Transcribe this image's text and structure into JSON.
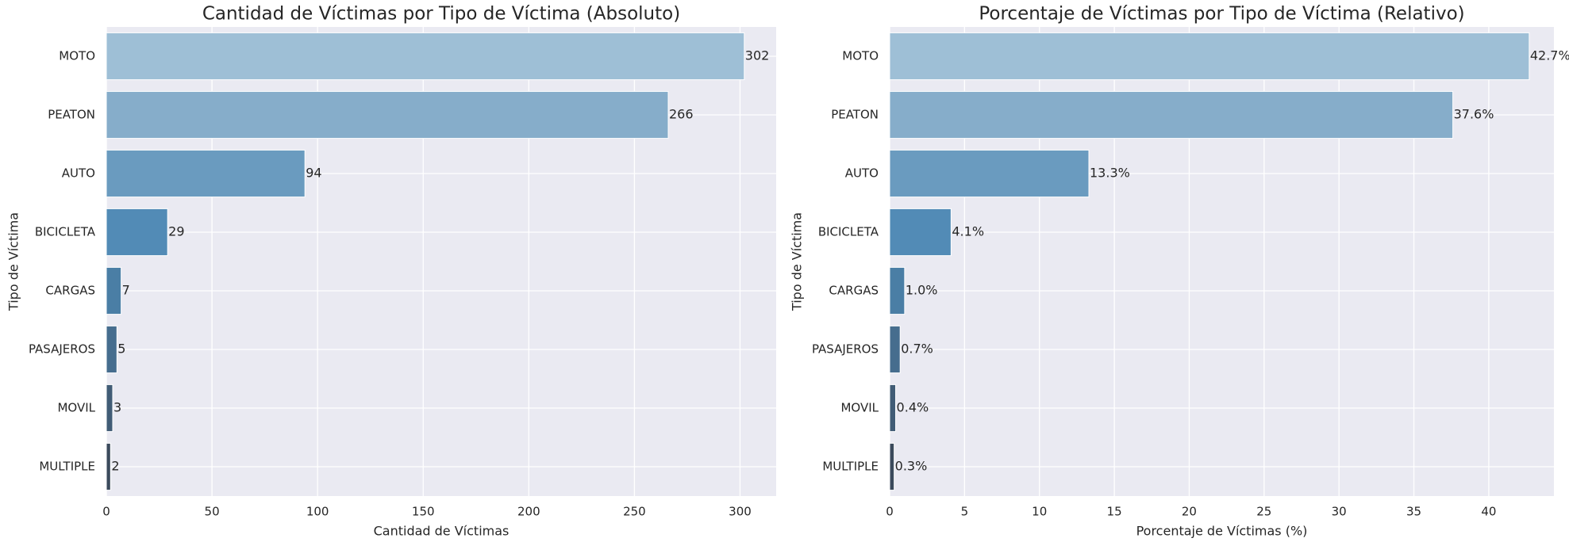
{
  "chart_data": [
    {
      "type": "bar",
      "orientation": "horizontal",
      "title": "Cantidad de Víctimas por Tipo de Víctima (Absoluto)",
      "xlabel": "Cantidad de Víctimas",
      "ylabel": "Tipo de Víctima",
      "categories": [
        "MOTO",
        "PEATON",
        "AUTO",
        "BICICLETA",
        "CARGAS",
        "PASAJEROS",
        "MOVIL",
        "MULTIPLE"
      ],
      "values": [
        302,
        266,
        94,
        29,
        7,
        5,
        3,
        2
      ],
      "colors": [
        "#9ebfd6",
        "#86adca",
        "#6a9bbf",
        "#528bb6",
        "#4a7ea5",
        "#466d8e",
        "#415c76",
        "#3b4a5c"
      ],
      "xlim": [
        0,
        317.1
      ],
      "xticks": [
        0,
        50,
        100,
        150,
        200,
        250,
        300
      ],
      "grid": true
    },
    {
      "type": "bar",
      "orientation": "horizontal",
      "title": "Porcentaje de Víctimas por Tipo de Víctima (Relativo)",
      "xlabel": "Porcentaje de Víctimas (%)",
      "ylabel": "Tipo de Víctima",
      "categories": [
        "MOTO",
        "PEATON",
        "AUTO",
        "BICICLETA",
        "CARGAS",
        "PASAJEROS",
        "MOVIL",
        "MULTIPLE"
      ],
      "values": [
        42.7,
        37.6,
        13.3,
        4.1,
        1.0,
        0.7,
        0.4,
        0.3
      ],
      "value_labels": [
        "42.7%",
        "37.6%",
        "13.3%",
        "4.1%",
        "1.0%",
        "0.7%",
        "0.4%",
        "0.3%"
      ],
      "colors": [
        "#9ebfd6",
        "#86adca",
        "#6a9bbf",
        "#528bb6",
        "#4a7ea5",
        "#466d8e",
        "#415c76",
        "#3b4a5c"
      ],
      "xlim": [
        0,
        44.35
      ],
      "xticks": [
        0,
        5,
        10,
        15,
        20,
        25,
        30,
        35,
        40
      ],
      "grid": true
    }
  ]
}
